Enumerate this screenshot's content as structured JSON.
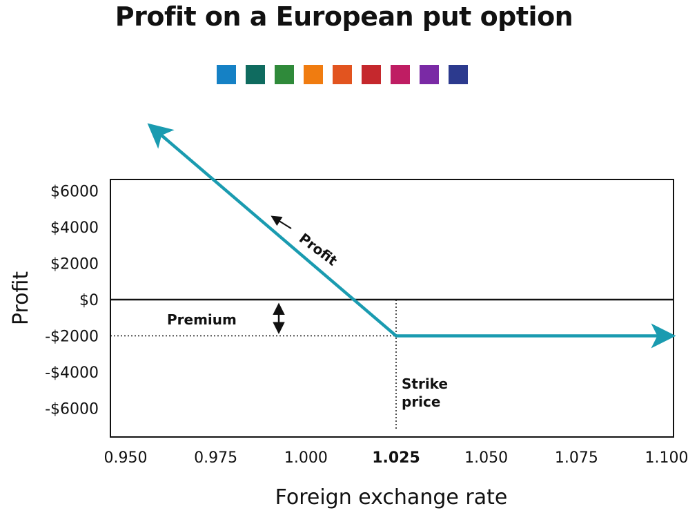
{
  "title": "Profit on a European put option",
  "palette": [
    "#1581c5",
    "#0f6b5f",
    "#2f8a3a",
    "#f07c10",
    "#e2541f",
    "#c5282d",
    "#bf1d63",
    "#7a2aa5",
    "#2c3a8e"
  ],
  "chart_data": {
    "type": "line",
    "title": "Profit on a European put option",
    "xlabel": "Foreign exchange rate",
    "ylabel": "Profit",
    "xlim": [
      0.95,
      1.1
    ],
    "ylim": [
      -7200,
      7200
    ],
    "x_ticks": [
      "0.950",
      "0.975",
      "1.000",
      "1.025",
      "1.050",
      "1.075",
      "1.100"
    ],
    "x_tick_values": [
      0.95,
      0.975,
      1.0,
      1.025,
      1.05,
      1.075,
      1.1
    ],
    "x_tick_bold": "1.025",
    "y_ticks": [
      "$6000",
      "$4000",
      "$2000",
      "$0",
      "-$2000",
      "-$4000",
      "-$6000"
    ],
    "y_tick_values": [
      6000,
      4000,
      2000,
      0,
      -2000,
      -4000,
      -6000
    ],
    "strike": 1.025,
    "premium": -2000,
    "line_color": "#1a9bb0",
    "series": [
      {
        "x": [
          0.958,
          1.025,
          1.1
        ],
        "y": [
          9400,
          -2000,
          -2000
        ]
      }
    ],
    "annotations": {
      "profit_label": "Profit",
      "premium_label": "Premium",
      "strike_label_line1": "Strike",
      "strike_label_line2": "price"
    }
  }
}
